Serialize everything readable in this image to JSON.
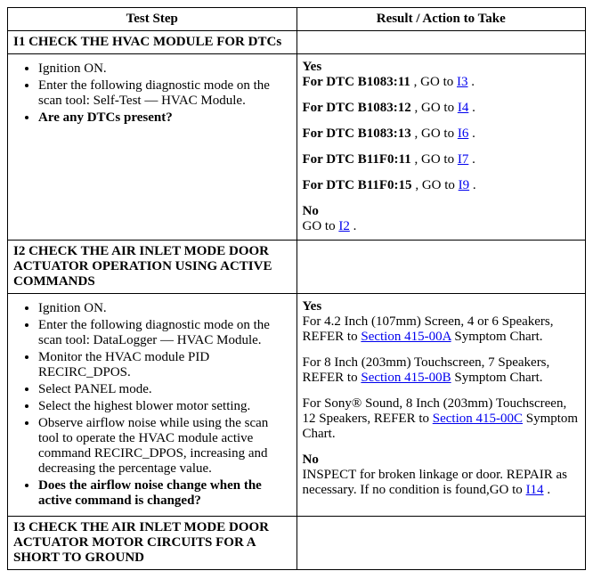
{
  "headers": {
    "left": "Test Step",
    "right": "Result / Action to Take"
  },
  "rows": [
    {
      "id": "I1",
      "title": "I1 CHECK THE HVAC MODULE FOR DTCs",
      "steps": [
        {
          "text": "Ignition ON.",
          "bold": false
        },
        {
          "text": "Enter the following diagnostic mode on the scan tool: Self-Test — HVAC Module.",
          "bold": false
        },
        {
          "text": "Are any DTCs present?",
          "bold": true
        }
      ],
      "result": [
        {
          "type": "bold",
          "text": "Yes"
        },
        {
          "type": "dtcline",
          "prefix": "For DTC B1083:11",
          "mid": " , GO to ",
          "link": "I3",
          "suffix": " ."
        },
        {
          "type": "spacer"
        },
        {
          "type": "dtcline",
          "prefix": "For DTC B1083:12",
          "mid": " , GO to ",
          "link": "I4",
          "suffix": " ."
        },
        {
          "type": "spacer"
        },
        {
          "type": "dtcline",
          "prefix": "For DTC B1083:13",
          "mid": " , GO to ",
          "link": "I6",
          "suffix": " ."
        },
        {
          "type": "spacer"
        },
        {
          "type": "dtcline",
          "prefix": "For DTC B11F0:11",
          "mid": " , GO to ",
          "link": "I7",
          "suffix": " ."
        },
        {
          "type": "spacer"
        },
        {
          "type": "dtcline",
          "prefix": "For DTC B11F0:15",
          "mid": " , GO to ",
          "link": "I9",
          "suffix": " ."
        },
        {
          "type": "spacer"
        },
        {
          "type": "bold",
          "text": "No"
        },
        {
          "type": "gotoline",
          "prefix": "GO to ",
          "link": "I2",
          "suffix": " ."
        }
      ]
    },
    {
      "id": "I2",
      "title": "I2 CHECK THE AIR INLET MODE DOOR ACTUATOR OPERATION USING ACTIVE COMMANDS",
      "steps": [
        {
          "text": "Ignition ON.",
          "bold": false
        },
        {
          "text": "Enter the following diagnostic mode on the scan tool: DataLogger — HVAC Module.",
          "bold": false
        },
        {
          "text": "Monitor the HVAC module PID RECIRC_DPOS.",
          "bold": false
        },
        {
          "text": "Select PANEL mode.",
          "bold": false
        },
        {
          "text": "Select the highest blower motor setting.",
          "bold": false
        },
        {
          "text": "Observe airflow noise while using the scan tool to operate the HVAC module active command RECIRC_DPOS, increasing and decreasing the percentage value.",
          "bold": false
        },
        {
          "text": "Does the airflow noise change when the active command is changed?",
          "bold": true
        }
      ],
      "result": [
        {
          "type": "bold",
          "text": "Yes"
        },
        {
          "type": "referline",
          "prefix": "For 4.2 Inch (107mm) Screen, 4 or 6 Speakers, REFER to ",
          "link": "Section 415-00A",
          "suffix": " Symptom Chart."
        },
        {
          "type": "spacer"
        },
        {
          "type": "referline",
          "prefix": "For 8 Inch (203mm) Touchscreen, 7 Speakers, REFER to ",
          "link": "Section 415-00B",
          "suffix": " Symptom Chart."
        },
        {
          "type": "spacer"
        },
        {
          "type": "referline",
          "prefix": "For Sony® Sound, 8 Inch (203mm) Touchscreen, 12 Speakers, REFER to ",
          "link": "Section 415-00C",
          "suffix": " Symptom Chart."
        },
        {
          "type": "spacer"
        },
        {
          "type": "bold",
          "text": "No"
        },
        {
          "type": "inspectline",
          "prefix": "INSPECT for broken linkage or door. REPAIR as necessary. If no condition is found,GO to ",
          "link": "I14",
          "suffix": " ."
        }
      ]
    },
    {
      "id": "I3",
      "title": "I3 CHECK THE AIR INLET MODE DOOR ACTUATOR MOTOR CIRCUITS FOR A SHORT TO GROUND",
      "steps": [],
      "result": []
    }
  ]
}
